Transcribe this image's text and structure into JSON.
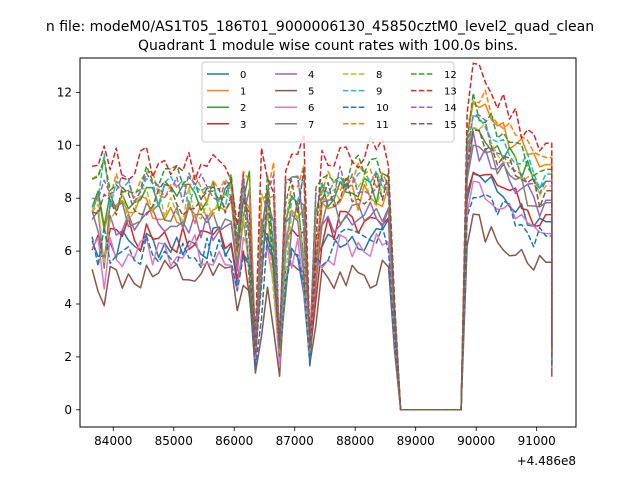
{
  "suptitle": "n file: modeM0/AS1T05_186T01_9000006130_45850cztM0_level2_quad_clean",
  "colors": {
    "tab10": [
      "#1f77b4",
      "#ff7f0e",
      "#2ca02c",
      "#d62728",
      "#9467bd",
      "#8c564b",
      "#e377c2",
      "#7f7f7f",
      "#bcbd22",
      "#17becf"
    ]
  },
  "chart_data": {
    "type": "line",
    "title": "Quadrant 1 module wise count rates with 100.0s bins.",
    "xlabel": "",
    "ylabel": "",
    "x_offset_label": "+4.486e8",
    "xlim": [
      83450,
      91650
    ],
    "ylim": [
      -0.65,
      13.3
    ],
    "xticks": [
      84000,
      85000,
      86000,
      87000,
      88000,
      89000,
      90000,
      91000
    ],
    "xtick_labels": [
      "84000",
      "85000",
      "86000",
      "87000",
      "88000",
      "89000",
      "90000",
      "91000"
    ],
    "yticks": [
      0,
      2,
      4,
      6,
      8,
      10,
      12
    ],
    "ytick_labels": [
      "0",
      "2",
      "4",
      "6",
      "8",
      "10",
      "12"
    ],
    "legend_position": "top-center",
    "legend_columns": 4,
    "x_range": [
      83650,
      91250
    ],
    "bin_seconds": 100,
    "features": {
      "dips": [
        86350,
        86750,
        87250
      ],
      "gap": [
        88700,
        89800
      ],
      "gap_level": 0.0
    },
    "series": [
      {
        "name": "0",
        "style": "solid",
        "color": "#1f77b4",
        "level": 6.3,
        "late": 7.9
      },
      {
        "name": "1",
        "style": "solid",
        "color": "#ff7f0e",
        "level": 7.6,
        "late": 10.3
      },
      {
        "name": "2",
        "style": "solid",
        "color": "#2ca02c",
        "level": 8.0,
        "late": 9.6
      },
      {
        "name": "3",
        "style": "solid",
        "color": "#d62728",
        "level": 6.6,
        "late": 8.2
      },
      {
        "name": "4",
        "style": "solid",
        "color": "#9467bd",
        "level": 7.0,
        "late": 8.8
      },
      {
        "name": "5",
        "style": "solid",
        "color": "#8c564b",
        "level": 5.0,
        "late": 6.2
      },
      {
        "name": "6",
        "style": "solid",
        "color": "#e377c2",
        "level": 6.0,
        "late": 7.4
      },
      {
        "name": "7",
        "style": "solid",
        "color": "#7f7f7f",
        "level": 7.3,
        "late": 8.7
      },
      {
        "name": "8",
        "style": "dashed",
        "color": "#bcbd22",
        "level": 7.8,
        "late": 9.4
      },
      {
        "name": "9",
        "style": "dashed",
        "color": "#17becf",
        "level": 8.2,
        "late": 9.9
      },
      {
        "name": "10",
        "style": "dashed",
        "color": "#1f77b4",
        "level": 6.0,
        "late": 7.3
      },
      {
        "name": "11",
        "style": "dashed",
        "color": "#ff7f0e",
        "level": 8.4,
        "late": 10.6
      },
      {
        "name": "12",
        "style": "dashed",
        "color": "#2ca02c",
        "level": 8.6,
        "late": 10.1
      },
      {
        "name": "13",
        "style": "dashed",
        "color": "#d62728",
        "level": 9.3,
        "late": 11.2
      },
      {
        "name": "14",
        "style": "dashed",
        "color": "#9467bd",
        "level": 8.3,
        "late": 9.6
      },
      {
        "name": "15",
        "style": "dashed",
        "color": "#8c564b",
        "level": 8.0,
        "late": 9.2
      }
    ]
  }
}
